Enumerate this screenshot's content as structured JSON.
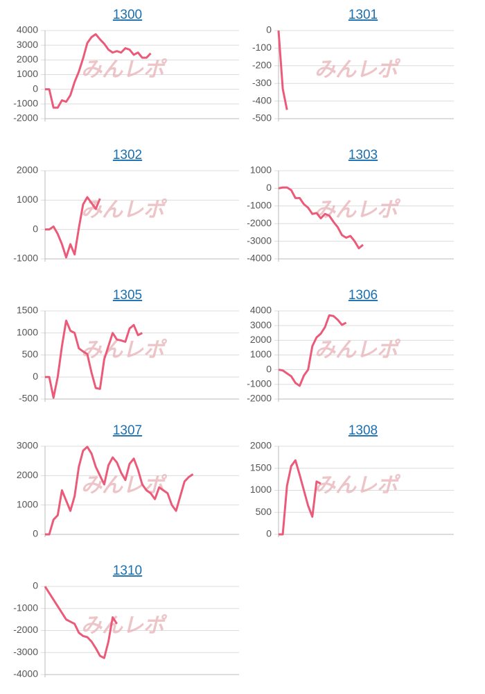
{
  "watermark": "みんレポ",
  "chart_data": [
    {
      "type": "line",
      "title": "1300",
      "color": "#eb5a78",
      "grid": true,
      "ylim": [
        -2000,
        4000
      ],
      "yticks": [
        -2000,
        -1000,
        0,
        1000,
        2000,
        3000,
        4000
      ],
      "values": [
        0,
        0,
        -1250,
        -1250,
        -750,
        -850,
        -400,
        500,
        1200,
        2100,
        3150,
        3550,
        3750,
        3400,
        3100,
        2700,
        2500,
        2600,
        2500,
        2800,
        2700,
        2350,
        2500,
        2150,
        2150,
        2450
      ]
    },
    {
      "type": "line",
      "title": "1301",
      "color": "#eb5a78",
      "grid": true,
      "ylim": [
        -500,
        0
      ],
      "yticks": [
        -500,
        -400,
        -300,
        -200,
        -100,
        0
      ],
      "values": [
        0,
        -330,
        -450
      ]
    },
    {
      "type": "line",
      "title": "1302",
      "color": "#eb5a78",
      "grid": true,
      "ylim": [
        -1000,
        2000
      ],
      "yticks": [
        -1000,
        0,
        1000,
        2000
      ],
      "values": [
        0,
        0,
        100,
        -150,
        -500,
        -950,
        -500,
        -850,
        50,
        850,
        1100,
        900,
        700,
        1050
      ]
    },
    {
      "type": "line",
      "title": "1303",
      "color": "#eb5a78",
      "grid": true,
      "ylim": [
        -4000,
        1000
      ],
      "yticks": [
        -4000,
        -3000,
        -2000,
        -1000,
        0,
        1000
      ],
      "values": [
        0,
        50,
        50,
        -100,
        -550,
        -550,
        -900,
        -1100,
        -1450,
        -1400,
        -1700,
        -1450,
        -1550,
        -1900,
        -2200,
        -2650,
        -2800,
        -2700,
        -3000,
        -3400,
        -3200
      ]
    },
    {
      "type": "line",
      "title": "1305",
      "color": "#eb5a78",
      "grid": true,
      "ylim": [
        -500,
        1500
      ],
      "yticks": [
        -500,
        0,
        500,
        1000,
        1500
      ],
      "values": [
        0,
        0,
        -470,
        0,
        700,
        1280,
        1050,
        1000,
        650,
        580,
        520,
        100,
        -250,
        -270,
        400,
        700,
        1000,
        850,
        830,
        800,
        1100,
        1180,
        950,
        1000
      ]
    },
    {
      "type": "line",
      "title": "1306",
      "color": "#eb5a78",
      "grid": true,
      "ylim": [
        -2000,
        4000
      ],
      "yticks": [
        -2000,
        -1000,
        0,
        1000,
        2000,
        3000,
        4000
      ],
      "values": [
        0,
        -50,
        -250,
        -450,
        -900,
        -1100,
        -400,
        0,
        1600,
        2200,
        2450,
        2900,
        3700,
        3650,
        3400,
        3050,
        3200
      ]
    },
    {
      "type": "line",
      "title": "1307",
      "color": "#eb5a78",
      "grid": true,
      "ylim": [
        0,
        3000
      ],
      "yticks": [
        0,
        1000,
        2000,
        3000
      ],
      "values": [
        0,
        0,
        500,
        650,
        1500,
        1150,
        800,
        1300,
        2300,
        2850,
        2980,
        2750,
        2300,
        2000,
        1700,
        2350,
        2620,
        2450,
        2100,
        1850,
        2400,
        2580,
        2200,
        1700,
        1500,
        1400,
        1200,
        1600,
        1500,
        1400,
        1000,
        800,
        1300,
        1800,
        1950,
        2050
      ]
    },
    {
      "type": "line",
      "title": "1308",
      "color": "#eb5a78",
      "grid": true,
      "ylim": [
        0,
        2000
      ],
      "yticks": [
        0,
        500,
        1000,
        1500,
        2000
      ],
      "values": [
        0,
        0,
        1100,
        1550,
        1680,
        1350,
        1000,
        650,
        400,
        1200,
        1150
      ]
    },
    {
      "type": "line",
      "title": "1310",
      "color": "#eb5a78",
      "grid": true,
      "ylim": [
        -4000,
        0
      ],
      "yticks": [
        -4000,
        -3000,
        -2000,
        -1000,
        0
      ],
      "values": [
        0,
        -300,
        -600,
        -900,
        -1200,
        -1500,
        -1600,
        -1700,
        -2100,
        -2250,
        -2300,
        -2500,
        -2800,
        -3150,
        -3250,
        -2500,
        -1400,
        -1700
      ]
    }
  ]
}
